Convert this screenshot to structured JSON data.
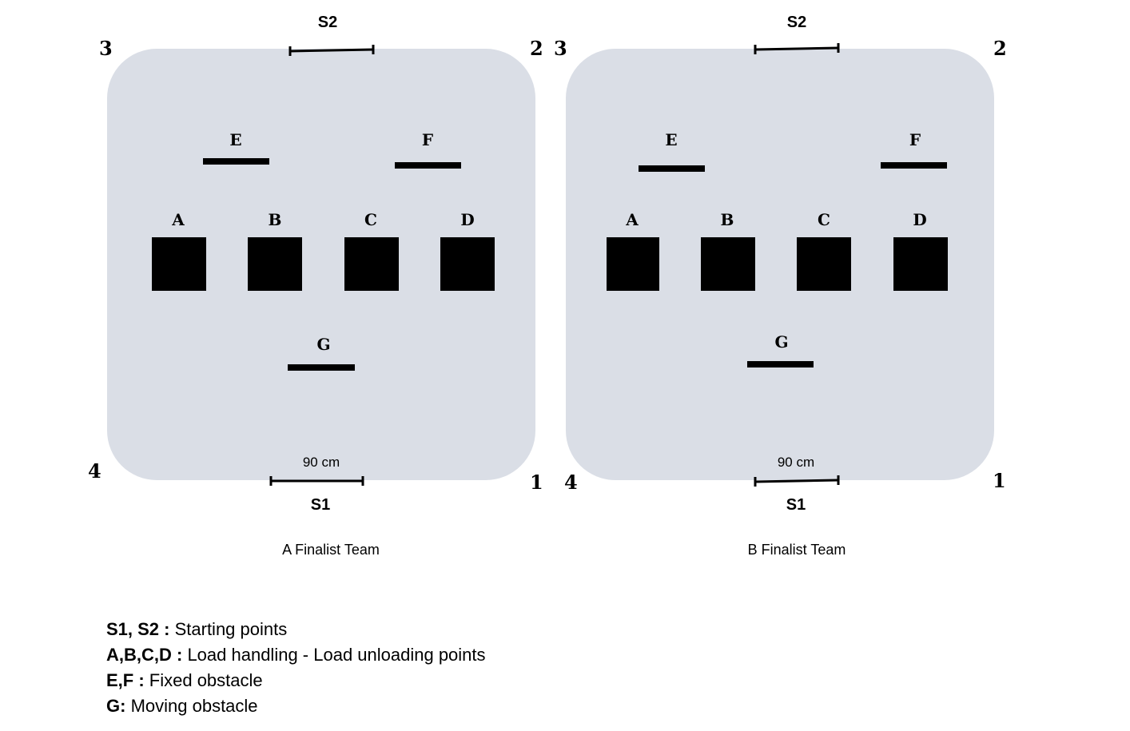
{
  "colors": {
    "arena": "#dadee6",
    "ink": "#000000"
  },
  "fields": [
    {
      "caption": "A Finalist Team",
      "start_points": {
        "top": "S2",
        "bottom": "S1"
      },
      "dimension": "90 cm",
      "corners": {
        "top_left": "3",
        "top_right": "2",
        "bottom_right": "1",
        "bottom_left": "4"
      },
      "fixed_obstacles": [
        "E",
        "F"
      ],
      "moving_obstacle": "G",
      "load_points": [
        "A",
        "B",
        "C",
        "D"
      ]
    },
    {
      "caption": "B Finalist Team",
      "start_points": {
        "top": "S2",
        "bottom": "S1"
      },
      "dimension": "90 cm",
      "corners": {
        "top_left": "3",
        "top_right": "2",
        "bottom_right": "1",
        "bottom_left": "4"
      },
      "fixed_obstacles": [
        "E",
        "F"
      ],
      "moving_obstacle": "G",
      "load_points": [
        "A",
        "B",
        "C",
        "D"
      ]
    }
  ],
  "legend": [
    {
      "key": "S1, S2 :",
      "text": " Starting points"
    },
    {
      "key": "A,B,C,D :",
      "text": " Load handling - Load unloading points"
    },
    {
      "key": "E,F :",
      "text": " Fixed obstacle"
    },
    {
      "key": "G:",
      "text": " Moving obstacle"
    }
  ]
}
